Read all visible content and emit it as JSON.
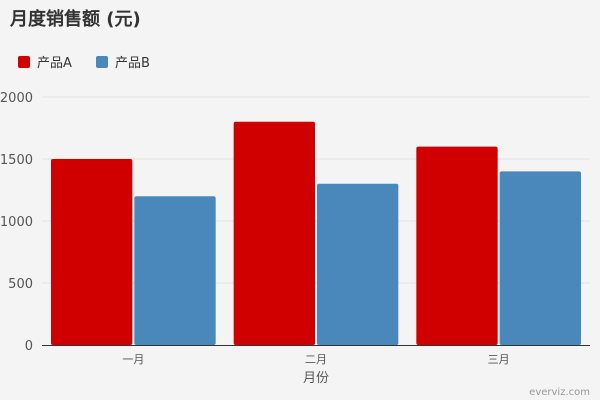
{
  "chart_data": {
    "type": "bar",
    "title": "月度销售额 (元)",
    "xlabel": "月份",
    "ylabel": "",
    "categories": [
      "一月",
      "二月",
      "三月"
    ],
    "series": [
      {
        "name": "产品A",
        "values": [
          1500,
          1800,
          1600
        ],
        "color": "#d00000"
      },
      {
        "name": "产品B",
        "values": [
          1200,
          1300,
          1400
        ],
        "color": "#4a87bb"
      }
    ],
    "ylim": [
      0,
      2000
    ],
    "yticks": [
      0,
      500,
      1000,
      1500,
      2000
    ],
    "grid": true,
    "legend_position": "top-left"
  },
  "credit": "everviz.com"
}
